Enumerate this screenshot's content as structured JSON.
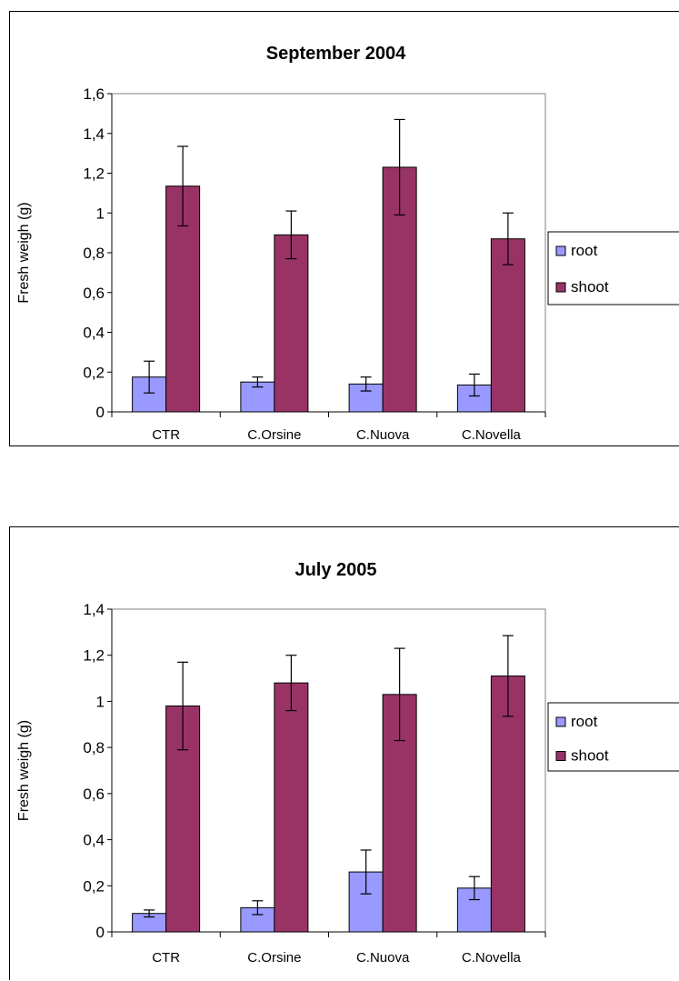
{
  "chart_data": [
    {
      "type": "bar",
      "title": "September 2004",
      "ylabel": "Fresh weigh (g)",
      "xlabel": "",
      "ylim": [
        0,
        1.6
      ],
      "yticks": [
        0,
        0.2,
        0.4,
        0.6,
        0.8,
        1.0,
        1.2,
        1.4,
        1.6
      ],
      "ytick_labels": [
        "0",
        "0,2",
        "0,4",
        "0,6",
        "0,8",
        "1",
        "1,2",
        "1,4",
        "1,6"
      ],
      "categories": [
        "CTR",
        "C.Orsine",
        "C.Nuova",
        "C.Novella"
      ],
      "series": [
        {
          "name": "root",
          "color": "#9999ff",
          "values": [
            0.175,
            0.15,
            0.14,
            0.135
          ],
          "errors": [
            0.08,
            0.025,
            0.035,
            0.055
          ]
        },
        {
          "name": "shoot",
          "color": "#993366",
          "values": [
            1.135,
            0.89,
            1.23,
            0.87
          ],
          "errors": [
            0.2,
            0.12,
            0.24,
            0.13
          ]
        }
      ],
      "legend_position": "right",
      "grid": false
    },
    {
      "type": "bar",
      "title": "July 2005",
      "ylabel": "Fresh weigh (g)",
      "xlabel": "",
      "ylim": [
        0,
        1.4
      ],
      "yticks": [
        0,
        0.2,
        0.4,
        0.6,
        0.8,
        1.0,
        1.2,
        1.4
      ],
      "ytick_labels": [
        "0",
        "0,2",
        "0,4",
        "0,6",
        "0,8",
        "1",
        "1,2",
        "1,4"
      ],
      "categories": [
        "CTR",
        "C.Orsine",
        "C.Nuova",
        "C.Novella"
      ],
      "series": [
        {
          "name": "root",
          "color": "#9999ff",
          "values": [
            0.08,
            0.105,
            0.26,
            0.19
          ],
          "errors": [
            0.015,
            0.03,
            0.095,
            0.05
          ]
        },
        {
          "name": "shoot",
          "color": "#993366",
          "values": [
            0.98,
            1.08,
            1.03,
            1.11
          ],
          "errors": [
            0.19,
            0.12,
            0.2,
            0.175
          ]
        }
      ],
      "legend_position": "right",
      "grid": false
    }
  ]
}
